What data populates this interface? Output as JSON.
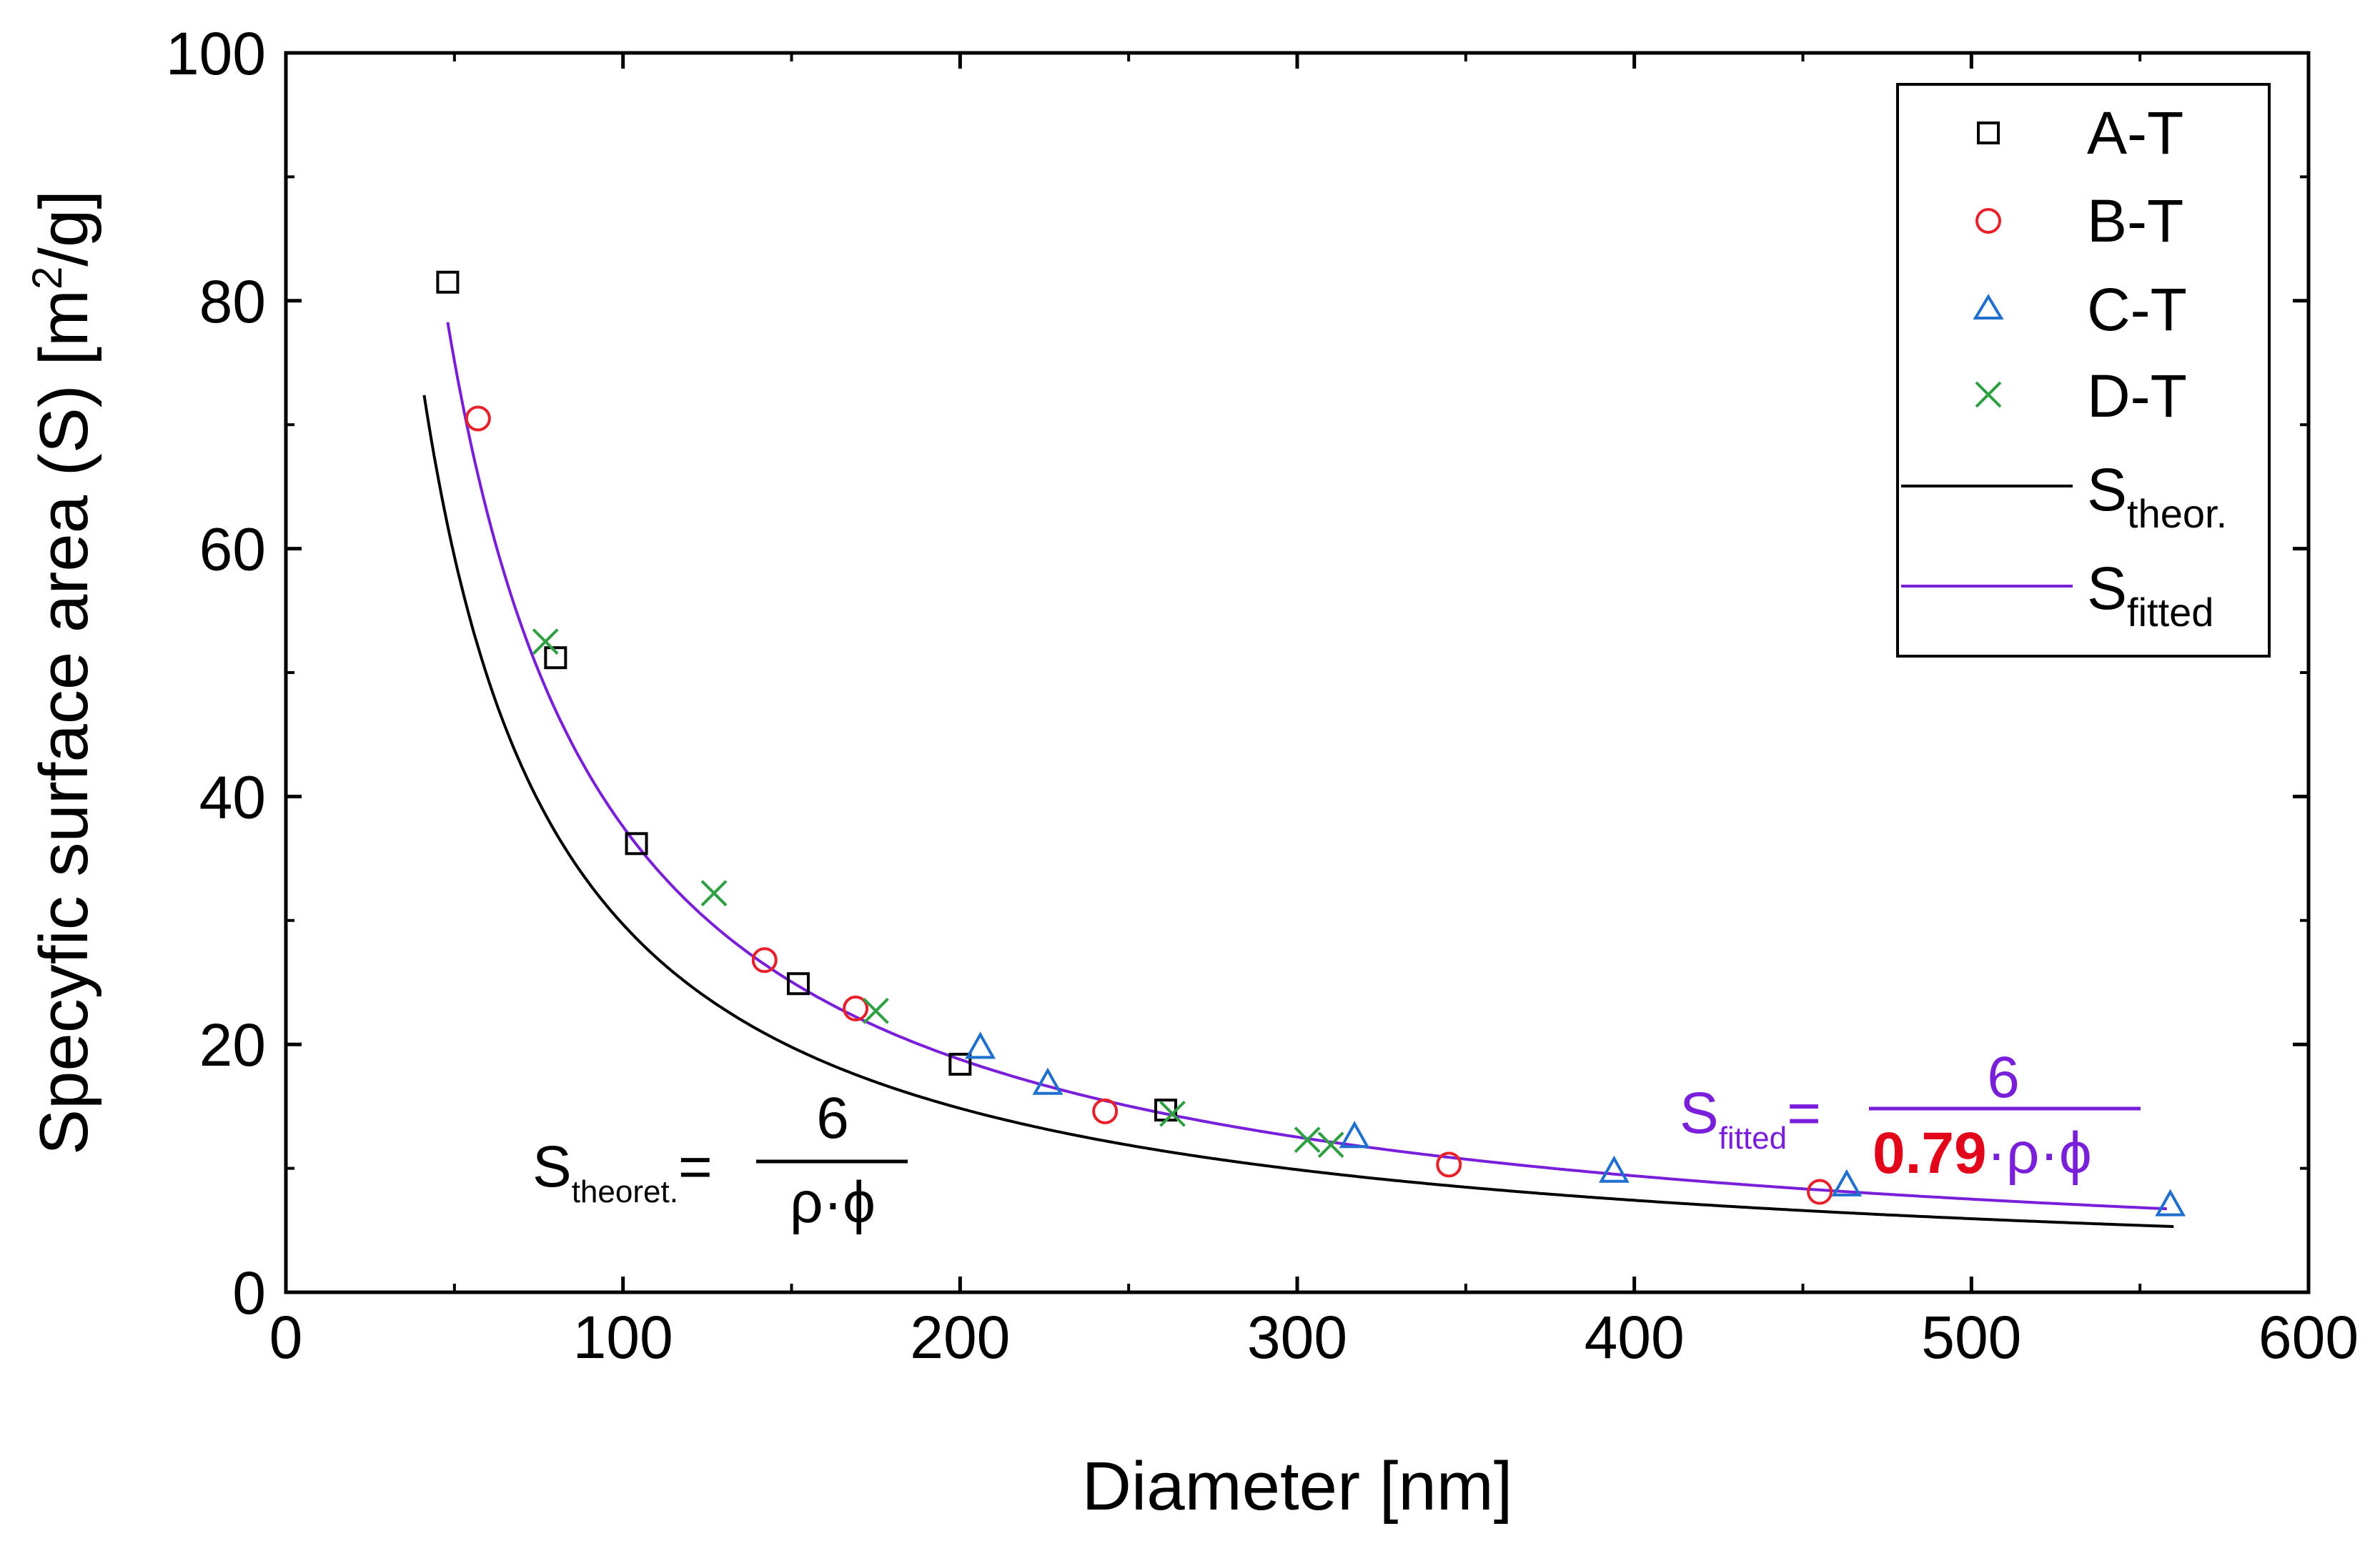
{
  "chart_data": {
    "type": "scatter",
    "title": "",
    "xlabel": "Diameter [nm]",
    "ylabel_parts": {
      "main": "Specyfic surface area (S) [m",
      "sup": "2",
      "tail": "/g]"
    },
    "xlim": [
      0,
      600
    ],
    "ylim": [
      0,
      100
    ],
    "x_ticks": [
      0,
      100,
      200,
      300,
      400,
      500,
      600
    ],
    "y_ticks": [
      0,
      20,
      40,
      60,
      80,
      100
    ],
    "legend_position": "top-right",
    "series": [
      {
        "name": "A-T",
        "marker": "square",
        "color": "#000000",
        "points": [
          [
            48,
            81.5
          ],
          [
            80,
            51.2
          ],
          [
            104,
            36.2
          ],
          [
            152,
            24.9
          ],
          [
            200,
            18.4
          ],
          [
            261,
            14.7
          ]
        ]
      },
      {
        "name": "B-T",
        "marker": "circle",
        "color": "#e8202a",
        "points": [
          [
            57,
            70.5
          ],
          [
            142,
            26.8
          ],
          [
            169,
            22.9
          ],
          [
            243,
            14.6
          ],
          [
            345,
            10.3
          ],
          [
            455,
            8.1
          ]
        ]
      },
      {
        "name": "C-T",
        "marker": "triangle",
        "color": "#1f6fcf",
        "points": [
          [
            206,
            19.7
          ],
          [
            226,
            16.8
          ],
          [
            317,
            12.5
          ],
          [
            394,
            9.7
          ],
          [
            463,
            8.6
          ],
          [
            559,
            7.0
          ]
        ]
      },
      {
        "name": "D-T",
        "marker": "x",
        "color": "#2ea043",
        "points": [
          [
            77,
            52.5
          ],
          [
            127,
            32.2
          ],
          [
            175,
            22.7
          ],
          [
            263,
            14.4
          ],
          [
            303,
            12.3
          ],
          [
            310,
            11.9
          ]
        ]
      }
    ],
    "lines": [
      {
        "name_main": "S",
        "name_sub": "theor.",
        "color": "#000000",
        "coef": 2968,
        "x_range": [
          41,
          560
        ]
      },
      {
        "name_main": "S",
        "name_sub": "fitted",
        "color": "#7a1fd9",
        "coef": 3757,
        "x_range": [
          48,
          558
        ]
      }
    ],
    "annotations": {
      "theoretical": {
        "main": "S",
        "sub": "theoret.",
        "equals": "=",
        "numerator": "6",
        "denominator": "ρ·ϕ"
      },
      "fitted": {
        "main": "S",
        "sub": "fitted",
        "equals": "=",
        "numerator": "6",
        "factor": "0.79",
        "denominator_rest": "·ρ·ϕ"
      }
    },
    "colors": {
      "axis": "#000000",
      "theoretical_line": "#000000",
      "fitted_line": "#7a1fd9",
      "factor_highlight": "#e3061b"
    }
  }
}
